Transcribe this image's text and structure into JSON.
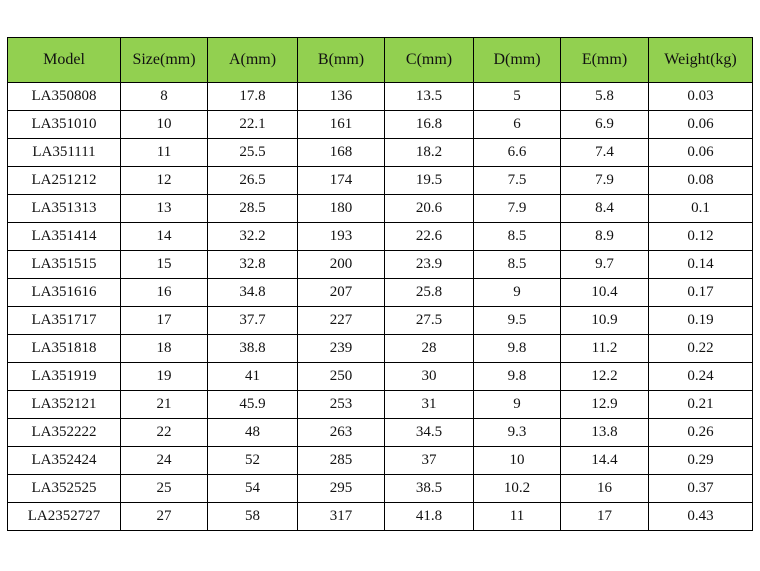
{
  "theme": {
    "header_bg": "#92d050",
    "border": "#000000",
    "text": "#111111"
  },
  "table": {
    "columns": [
      "Model",
      "Size(mm)",
      "A(mm)",
      "B(mm)",
      "C(mm)",
      "D(mm)",
      "E(mm)",
      "Weight(kg)"
    ],
    "rows": [
      [
        "LA350808",
        "8",
        "17.8",
        "136",
        "13.5",
        "5",
        "5.8",
        "0.03"
      ],
      [
        "LA351010",
        "10",
        "22.1",
        "161",
        "16.8",
        "6",
        "6.9",
        "0.06"
      ],
      [
        "LA351111",
        "11",
        "25.5",
        "168",
        "18.2",
        "6.6",
        "7.4",
        "0.06"
      ],
      [
        "LA251212",
        "12",
        "26.5",
        "174",
        "19.5",
        "7.5",
        "7.9",
        "0.08"
      ],
      [
        "LA351313",
        "13",
        "28.5",
        "180",
        "20.6",
        "7.9",
        "8.4",
        "0.1"
      ],
      [
        "LA351414",
        "14",
        "32.2",
        "193",
        "22.6",
        "8.5",
        "8.9",
        "0.12"
      ],
      [
        "LA351515",
        "15",
        "32.8",
        "200",
        "23.9",
        "8.5",
        "9.7",
        "0.14"
      ],
      [
        "LA351616",
        "16",
        "34.8",
        "207",
        "25.8",
        "9",
        "10.4",
        "0.17"
      ],
      [
        "LA351717",
        "17",
        "37.7",
        "227",
        "27.5",
        "9.5",
        "10.9",
        "0.19"
      ],
      [
        "LA351818",
        "18",
        "38.8",
        "239",
        "28",
        "9.8",
        "11.2",
        "0.22"
      ],
      [
        "LA351919",
        "19",
        "41",
        "250",
        "30",
        "9.8",
        "12.2",
        "0.24"
      ],
      [
        "LA352121",
        "21",
        "45.9",
        "253",
        "31",
        "9",
        "12.9",
        "0.21"
      ],
      [
        "LA352222",
        "22",
        "48",
        "263",
        "34.5",
        "9.3",
        "13.8",
        "0.26"
      ],
      [
        "LA352424",
        "24",
        "52",
        "285",
        "37",
        "10",
        "14.4",
        "0.29"
      ],
      [
        "LA352525",
        "25",
        "54",
        "295",
        "38.5",
        "10.2",
        "16",
        "0.37"
      ],
      [
        "LA2352727",
        "27",
        "58",
        "317",
        "41.8",
        "11",
        "17",
        "0.43"
      ]
    ]
  }
}
